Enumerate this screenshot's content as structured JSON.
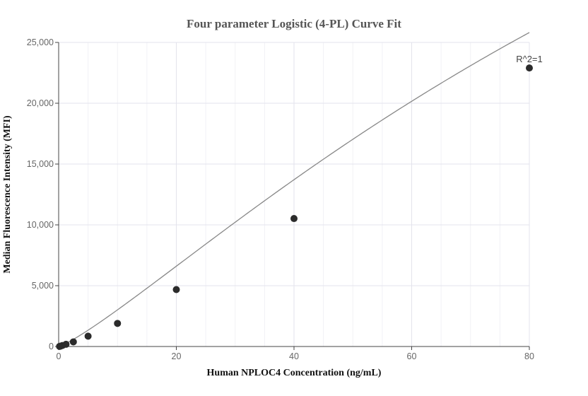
{
  "chart_data": {
    "type": "scatter",
    "title": "Four parameter Logistic (4-PL) Curve Fit",
    "xlabel": "Human NPLOC4 Concentration (ng/mL)",
    "ylabel": "Median Fluorescence Intensity (MFI)",
    "xlim": [
      0,
      80
    ],
    "ylim": [
      0,
      25000
    ],
    "x_ticks": [
      0,
      20,
      40,
      60,
      80
    ],
    "x_tick_labels": [
      "0",
      "20",
      "40",
      "60",
      "80"
    ],
    "y_ticks": [
      0,
      5000,
      10000,
      15000,
      20000,
      25000
    ],
    "y_tick_labels": [
      "0",
      "5,000",
      "10,000",
      "15,000",
      "20,000",
      "25,000"
    ],
    "grid": true,
    "points": {
      "x": [
        0.156,
        0.3125,
        0.625,
        1.25,
        2.5,
        5,
        10,
        20,
        40,
        80
      ],
      "y": [
        10,
        30,
        80,
        180,
        380,
        850,
        1900,
        4680,
        10520,
        22900
      ]
    },
    "fit_curve": {
      "model": "4PL",
      "A": 0,
      "B": 1.2,
      "C": 150,
      "D": 80700
    },
    "annotation": "R^2=1"
  }
}
